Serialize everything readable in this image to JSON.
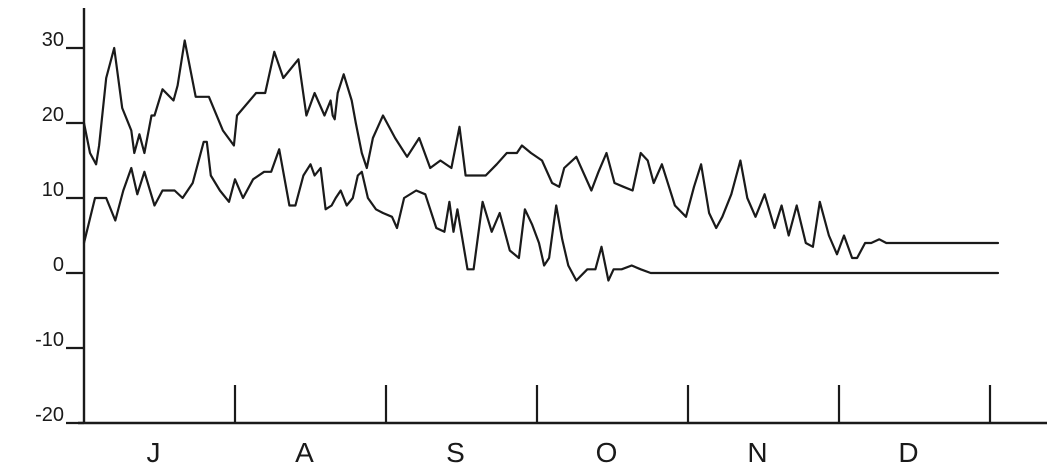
{
  "chart_data": {
    "type": "line",
    "title": "",
    "xlabel": "",
    "ylabel": "",
    "ylim": [
      -20,
      35
    ],
    "y_ticks": [
      30,
      20,
      10,
      0,
      -10,
      -20
    ],
    "y_tick_labels": [
      "30",
      "20",
      "10",
      "0",
      "-10",
      "-20"
    ],
    "x_range": [
      0,
      6
    ],
    "month_labels": [
      "J",
      "A",
      "S",
      "O",
      "N",
      "D"
    ],
    "month_boundaries": [
      1,
      2,
      3,
      4,
      5,
      6
    ],
    "grid": false,
    "legend": "none",
    "colors": {
      "line": "#1a1a1a",
      "background": "#ffffff"
    },
    "series": [
      {
        "x": [
          0.0,
          0.04,
          0.08,
          0.1,
          0.147,
          0.2,
          0.253,
          0.313,
          0.333,
          0.367,
          0.4,
          0.447,
          0.467,
          0.52,
          0.593,
          0.62,
          0.667,
          0.74,
          0.827,
          0.92,
          0.993,
          1.013,
          1.14,
          1.2,
          1.26,
          1.32,
          1.42,
          1.473,
          1.527,
          1.593,
          1.633,
          1.647,
          1.66,
          1.68,
          1.72,
          1.773,
          1.8,
          1.84,
          1.873,
          1.913,
          1.98,
          2.06,
          2.14,
          2.22,
          2.293,
          2.36,
          2.433,
          2.487,
          2.527,
          2.573,
          2.66,
          2.733,
          2.8,
          2.867,
          2.9,
          2.96,
          3.033,
          3.1,
          3.147,
          3.18,
          3.26,
          3.36,
          3.407,
          3.46,
          3.513,
          3.573,
          3.633,
          3.687,
          3.733,
          3.773,
          3.827,
          3.913,
          3.987,
          4.04,
          4.087,
          4.14,
          4.187,
          4.227,
          4.287,
          4.347,
          4.393,
          4.447,
          4.507,
          4.573,
          4.62,
          4.667,
          4.72,
          4.78,
          4.827,
          4.873,
          4.933,
          4.987,
          5.033,
          5.087,
          5.12,
          5.173,
          5.213,
          5.267,
          5.313,
          5.353,
          5.407,
          5.453,
          5.5,
          5.56,
          5.6,
          5.653,
          5.693,
          5.74,
          5.787,
          5.833,
          5.887,
          5.933,
          5.967,
          6.013,
          6.053
        ],
        "y": [
          20.0,
          16.0,
          14.5,
          17.0,
          26.0,
          30.0,
          22.0,
          19.0,
          16.0,
          18.5,
          16.0,
          21.0,
          21.0,
          24.5,
          23.0,
          25.0,
          31.0,
          23.5,
          23.5,
          19.0,
          17.0,
          21.0,
          24.0,
          24.0,
          29.5,
          26.0,
          28.5,
          21.0,
          24.0,
          21.0,
          23.0,
          21.0,
          20.5,
          24.0,
          26.5,
          23.0,
          20.0,
          16.0,
          14.0,
          18.0,
          21.0,
          18.0,
          15.5,
          18.0,
          14.0,
          15.0,
          14.0,
          19.5,
          13.0,
          13.0,
          13.0,
          14.5,
          16.0,
          16.0,
          17.0,
          16.0,
          15.0,
          12.0,
          11.5,
          14.0,
          15.5,
          11.0,
          13.5,
          16.0,
          12.0,
          11.5,
          11.0,
          16.0,
          15.0,
          12.0,
          14.5,
          9.0,
          7.5,
          11.5,
          14.5,
          8.0,
          6.0,
          7.5,
          10.5,
          15.0,
          10.0,
          7.5,
          10.5,
          6.0,
          9.0,
          5.0,
          9.0,
          4.0,
          3.5,
          9.5,
          5.0,
          2.5,
          5.0,
          2.0,
          2.0,
          4.0,
          4.0,
          4.5,
          4.0,
          4.0,
          4.0,
          4.0,
          4.0,
          4.0,
          4.0,
          4.0,
          4.0,
          4.0,
          4.0,
          4.0,
          4.0,
          4.0,
          4.0,
          4.0,
          4.0
        ]
      },
      {
        "x": [
          0.0,
          0.073,
          0.147,
          0.207,
          0.26,
          0.313,
          0.353,
          0.4,
          0.467,
          0.52,
          0.6,
          0.653,
          0.72,
          0.793,
          0.813,
          0.84,
          0.9,
          0.96,
          1.0,
          1.053,
          1.12,
          1.193,
          1.24,
          1.293,
          1.36,
          1.4,
          1.453,
          1.5,
          1.527,
          1.567,
          1.6,
          1.64,
          1.667,
          1.7,
          1.74,
          1.78,
          1.813,
          1.84,
          1.88,
          1.933,
          1.98,
          2.04,
          2.073,
          2.12,
          2.2,
          2.26,
          2.333,
          2.387,
          2.42,
          2.447,
          2.473,
          2.54,
          2.58,
          2.64,
          2.7,
          2.753,
          2.82,
          2.88,
          2.92,
          2.967,
          3.013,
          3.047,
          3.08,
          3.127,
          3.167,
          3.207,
          3.26,
          3.333,
          3.387,
          3.427,
          3.473,
          3.507,
          3.56,
          3.627,
          3.687,
          3.753,
          3.8,
          3.853,
          3.913,
          3.98,
          4.04,
          4.08,
          4.127,
          4.173,
          4.233,
          4.287,
          4.353,
          4.4,
          4.447,
          4.5,
          4.56,
          4.613,
          4.68,
          4.733,
          4.78,
          4.833,
          4.873,
          4.913,
          4.96,
          5.007,
          5.047,
          5.093,
          5.133,
          5.173,
          5.22,
          5.28,
          5.333,
          5.373,
          5.413,
          5.473,
          5.533,
          5.58,
          5.633,
          5.673,
          5.747,
          5.813,
          5.887,
          5.953,
          6.013,
          6.053
        ],
        "y": [
          4.0,
          10.0,
          10.0,
          7.0,
          11.0,
          14.0,
          10.5,
          13.5,
          9.0,
          11.0,
          11.0,
          10.0,
          12.0,
          17.5,
          17.5,
          13.0,
          11.0,
          9.5,
          12.5,
          10.0,
          12.5,
          13.5,
          13.5,
          16.5,
          9.0,
          9.0,
          13.0,
          14.5,
          13.0,
          14.0,
          8.5,
          9.0,
          10.0,
          11.0,
          9.0,
          10.0,
          13.0,
          13.5,
          10.0,
          8.5,
          8.0,
          7.5,
          6.0,
          10.0,
          11.0,
          10.5,
          6.0,
          5.5,
          9.5,
          5.5,
          8.5,
          0.5,
          0.5,
          9.5,
          5.5,
          8.0,
          3.0,
          2.0,
          8.5,
          6.5,
          4.0,
          1.0,
          2.0,
          9.0,
          4.5,
          1.0,
          -1.0,
          0.5,
          0.5,
          3.5,
          -1.0,
          0.5,
          0.5,
          1.0,
          0.5,
          0.0,
          0.0,
          0.0,
          0.0,
          0.0,
          0.0,
          0.0,
          0.0,
          0.0,
          0.0,
          0.0,
          0.0,
          0.0,
          0.0,
          0.0,
          0.0,
          0.0,
          0.0,
          0.0,
          0.0,
          0.0,
          0.0,
          0.0,
          0.0,
          0.0,
          0.0,
          0.0,
          0.0,
          0.0,
          0.0,
          0.0,
          0.0,
          0.0,
          0.0,
          0.0,
          0.0,
          0.0,
          0.0,
          0.0,
          0.0,
          0.0,
          0.0,
          0.0,
          0.0,
          0.0
        ]
      }
    ]
  }
}
